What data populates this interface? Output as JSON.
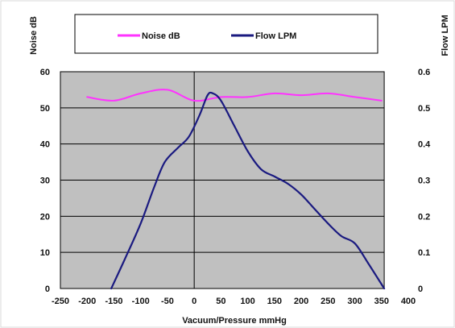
{
  "chart_data": {
    "type": "line",
    "title": "",
    "xlabel": "Vacuum/Pressure mmHg",
    "ylabel_left": "Noise dB",
    "ylabel_right": "Flow LPM",
    "xlim": [
      -250,
      400
    ],
    "ylim_left": [
      0,
      60
    ],
    "ylim_right": [
      0,
      0.6
    ],
    "x_ticks": [
      -250,
      -200,
      -150,
      -100,
      -50,
      0,
      50,
      100,
      150,
      200,
      250,
      300,
      350,
      400
    ],
    "y_left_ticks": [
      0,
      10,
      20,
      30,
      40,
      50,
      60
    ],
    "y_right_ticks": [
      0,
      0.1,
      0.2,
      0.3,
      0.4,
      0.5,
      0.6
    ],
    "x_tick_labels": [
      "-250",
      "-200",
      "-150",
      "-100",
      "-50",
      "0",
      "50",
      "100",
      "150",
      "200",
      "250",
      "300",
      "350",
      "400"
    ],
    "y_left_tick_labels": [
      "0",
      "10",
      "20",
      "30",
      "40",
      "50",
      "60"
    ],
    "y_right_tick_labels": [
      "0",
      "0.1",
      "0.2",
      "0.3",
      "0.4",
      "0.5",
      "0.6"
    ],
    "grid": true,
    "legend_position": "top",
    "plot_background": "#c0c0c0",
    "series": [
      {
        "name": "Noise dB",
        "axis": "left",
        "color": "#ff33ff",
        "x": [
          -200,
          -150,
          -100,
          -50,
          0,
          50,
          100,
          150,
          200,
          250,
          300,
          350
        ],
        "y": [
          53,
          52,
          54,
          55,
          52,
          53,
          53,
          54,
          53.5,
          54,
          53,
          52
        ]
      },
      {
        "name": "Flow LPM",
        "axis": "right",
        "color": "#1a1a80",
        "x": [
          -155,
          -130,
          -100,
          -75,
          -55,
          -30,
          -10,
          10,
          25,
          35,
          50,
          75,
          100,
          125,
          150,
          175,
          200,
          225,
          250,
          275,
          300,
          325,
          355
        ],
        "y": [
          0.0,
          0.08,
          0.18,
          0.28,
          0.35,
          0.39,
          0.42,
          0.48,
          0.535,
          0.54,
          0.52,
          0.45,
          0.38,
          0.33,
          0.31,
          0.29,
          0.26,
          0.22,
          0.18,
          0.145,
          0.125,
          0.07,
          0.0
        ]
      }
    ]
  }
}
